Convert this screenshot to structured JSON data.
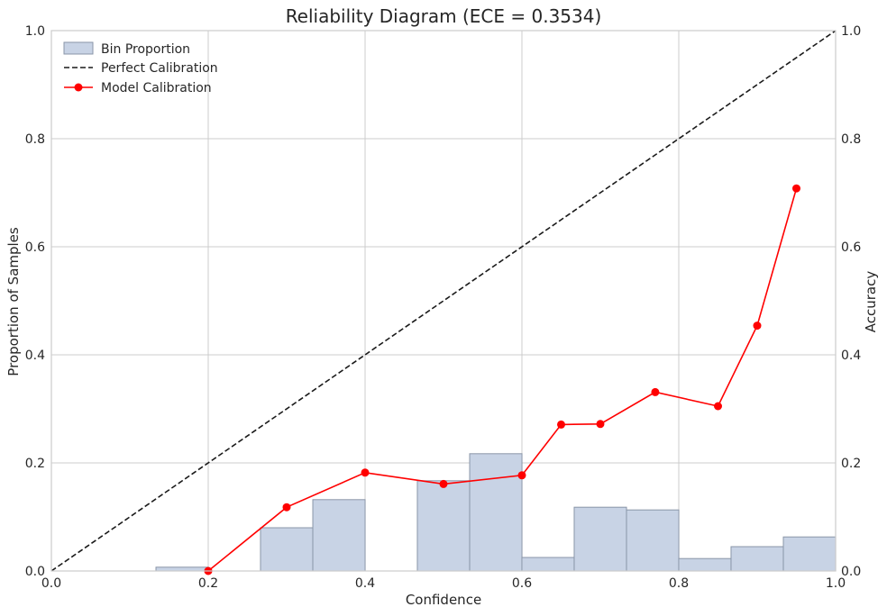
{
  "chart_data": {
    "type": "bar+line",
    "title": "Reliability Diagram (ECE = 0.3534)",
    "xlabel": "Confidence",
    "ylabel_left": "Proportion of Samples",
    "ylabel_right": "Accuracy",
    "xlim": [
      0,
      1
    ],
    "ylim_left": [
      0,
      1
    ],
    "ylim_right": [
      0,
      1
    ],
    "xticks": [
      "0.0",
      "0.2",
      "0.4",
      "0.6",
      "0.8",
      "1.0"
    ],
    "yticks_left": [
      "0.0",
      "0.2",
      "0.4",
      "0.6",
      "0.8",
      "1.0"
    ],
    "yticks_right": [
      "0.0",
      "0.2",
      "0.4",
      "0.6",
      "0.8",
      "1.0"
    ],
    "grid": true,
    "legend_position": "top-left",
    "legend": [
      "Bin Proportion",
      "Perfect Calibration",
      "Model Calibration"
    ],
    "bins": {
      "name": "Bin Proportion",
      "width": 0.0667,
      "color": "#c8d3e5",
      "edge_color": "#8a96a8",
      "centers": [
        0.1667,
        0.3,
        0.3667,
        0.5,
        0.5667,
        0.6333,
        0.7,
        0.7667,
        0.8333,
        0.9,
        0.9667
      ],
      "values": [
        0.007,
        0.08,
        0.132,
        0.167,
        0.217,
        0.025,
        0.118,
        0.113,
        0.023,
        0.045,
        0.063
      ]
    },
    "perfect_calibration": {
      "name": "Perfect Calibration",
      "x": [
        0,
        1
      ],
      "y": [
        0,
        1
      ],
      "color": "#1a1a1a"
    },
    "model_calibration": {
      "name": "Model Calibration",
      "color": "#ff0000",
      "x": [
        0.2,
        0.3,
        0.4,
        0.5,
        0.6,
        0.65,
        0.7,
        0.77,
        0.85,
        0.9,
        0.95
      ],
      "y": [
        0.0,
        0.118,
        0.182,
        0.161,
        0.177,
        0.271,
        0.272,
        0.331,
        0.305,
        0.454,
        0.708
      ]
    }
  }
}
